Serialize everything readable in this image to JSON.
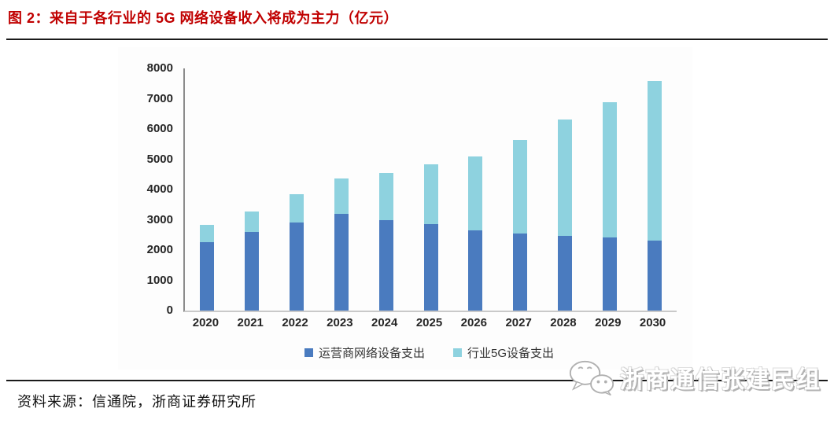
{
  "page": {
    "title": "图 2：来自于各行业的 5G 网络设备收入将成为主力（亿元）",
    "source_note": "资料来源：信通院，浙商证券研究所",
    "watermark": {
      "icon": "wechat-icon",
      "text": "浙商通信张建民组"
    }
  },
  "colors": {
    "title_red": "#c00000",
    "operator_blue": "#4a7bbf",
    "industry_cyan": "#8ed2df",
    "y_axis_line": "#8c8c8c",
    "x_axis_line": "#c9c9c9",
    "divider_black": "#1a1a1a"
  },
  "chart_data": {
    "type": "bar",
    "stacked": true,
    "title": "",
    "xlabel": "",
    "ylabel": "",
    "unit": "亿元",
    "categories": [
      "2020",
      "2021",
      "2022",
      "2023",
      "2024",
      "2025",
      "2026",
      "2027",
      "2028",
      "2029",
      "2030"
    ],
    "series": [
      {
        "name": "运营商网络设备支出",
        "color": "#4a7bbf",
        "values": [
          2250,
          2600,
          2900,
          3200,
          3000,
          2850,
          2650,
          2550,
          2480,
          2420,
          2320
        ]
      },
      {
        "name": "行业5G设备支出",
        "color": "#8ed2df",
        "values": [
          570,
          680,
          950,
          1160,
          1550,
          1980,
          2440,
          3080,
          3830,
          4460,
          5260
        ]
      }
    ],
    "totals": [
      2820,
      3280,
      3850,
      4360,
      4550,
      4830,
      5090,
      5630,
      6310,
      6880,
      7580
    ],
    "ylim": [
      0,
      8000
    ],
    "yticks": [
      0,
      1000,
      2000,
      3000,
      4000,
      5000,
      6000,
      7000,
      8000
    ],
    "grid": false,
    "legend_position": "bottom"
  }
}
